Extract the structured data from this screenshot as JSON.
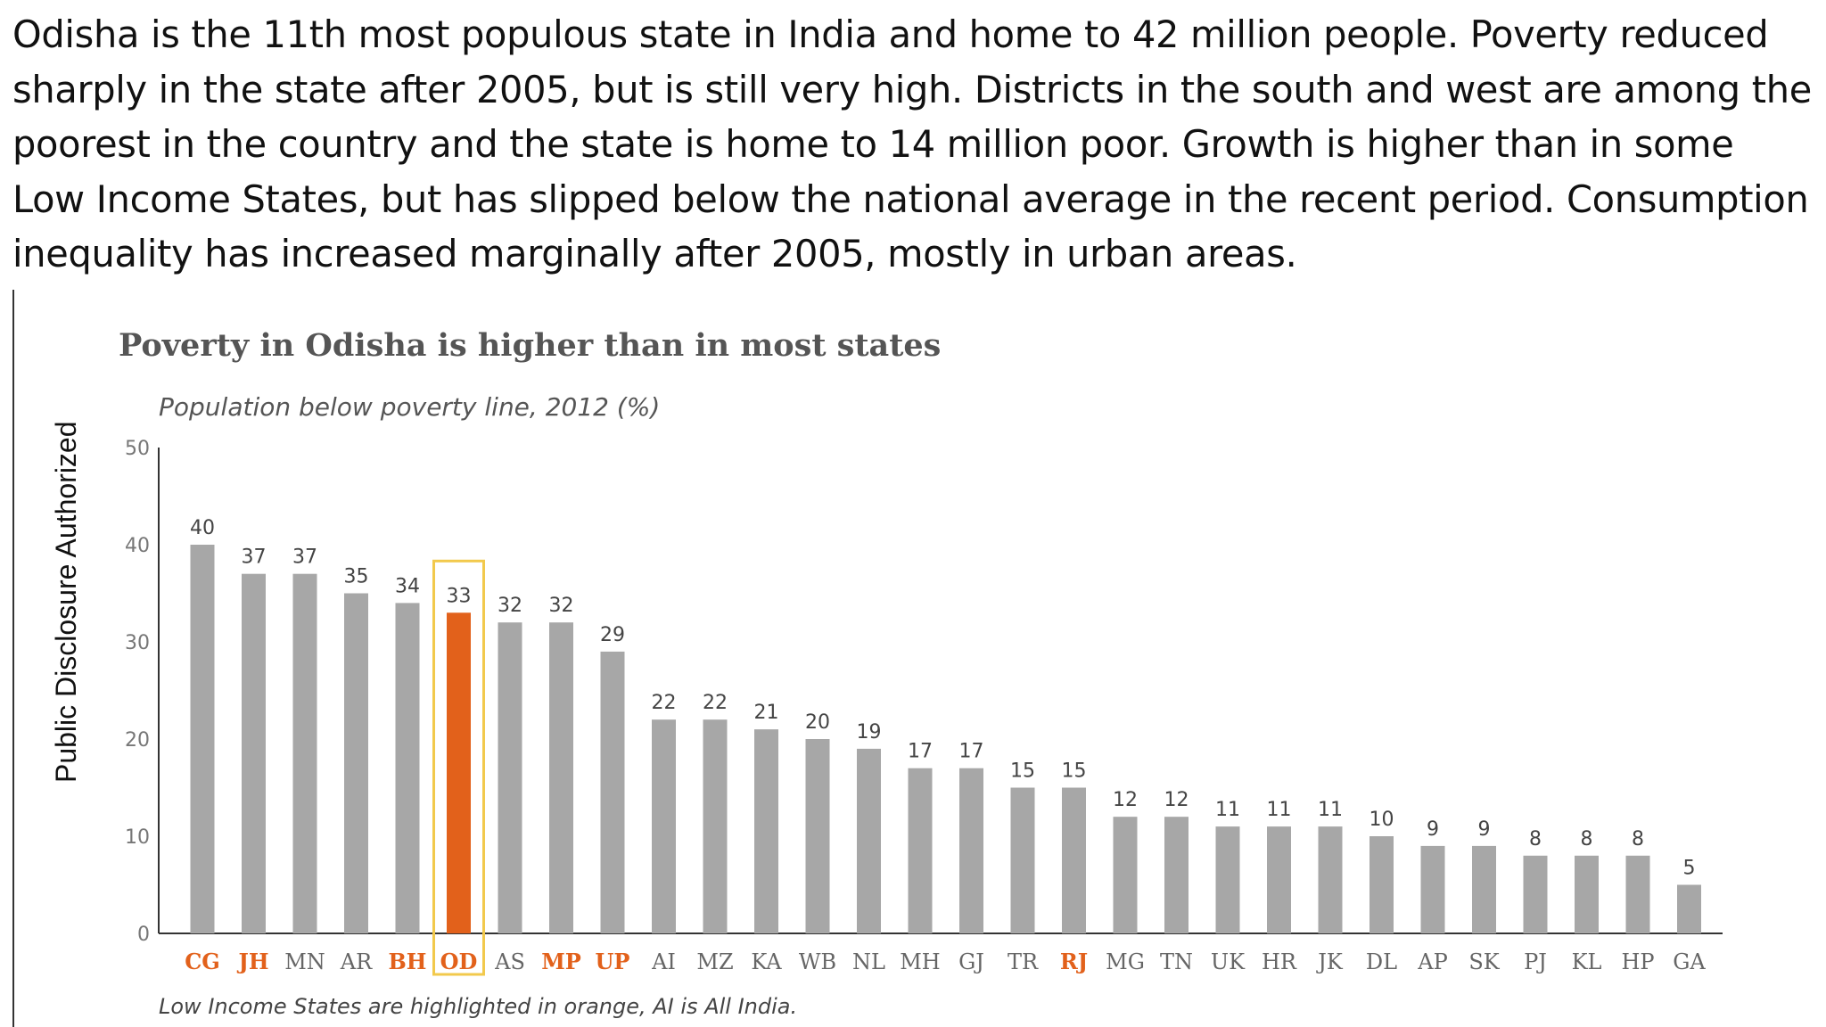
{
  "intro_text": "Odisha is the 11th most populous state in India and home to 42 million people. Poverty reduced sharply in the state after 2005, but is still very high. Districts in the south and west are among the poorest in the country and the state is home to 14 million poor. Growth is higher than in some Low Income States, but has slipped below the national average in the recent period. Consumption inequality has increased marginally after 2005, mostly in urban areas.",
  "side_label": "Public Disclosure Authorized",
  "colors": {
    "bar": "#a7a7a7",
    "highlight_bar": "#e2611b",
    "highlight_box": "#f2c94c",
    "low_income_label": "#e2611b"
  },
  "chart_data": {
    "type": "bar",
    "title": "Poverty in Odisha is higher than in most states",
    "subtitle": "Population below poverty line, 2012 (%)",
    "note": "Low Income States are highlighted in orange, AI is All India.",
    "categories": [
      "CG",
      "JH",
      "MN",
      "AR",
      "BH",
      "OD",
      "AS",
      "MP",
      "UP",
      "AI",
      "MZ",
      "KA",
      "WB",
      "NL",
      "MH",
      "GJ",
      "TR",
      "RJ",
      "MG",
      "TN",
      "UK",
      "HR",
      "JK",
      "DL",
      "AP",
      "SK",
      "PJ",
      "KL",
      "HP",
      "GA"
    ],
    "values": [
      40,
      37,
      37,
      35,
      34,
      33,
      32,
      32,
      29,
      22,
      22,
      21,
      20,
      19,
      17,
      17,
      15,
      15,
      12,
      12,
      11,
      11,
      11,
      10,
      9,
      9,
      8,
      8,
      8,
      5
    ],
    "low_income_states": [
      "CG",
      "JH",
      "BH",
      "OD",
      "MP",
      "UP",
      "RJ"
    ],
    "highlighted": "OD",
    "ylim": [
      0,
      50
    ],
    "yticks": [
      0,
      10,
      20,
      30,
      40,
      50
    ],
    "grid": false,
    "legend": "none"
  }
}
